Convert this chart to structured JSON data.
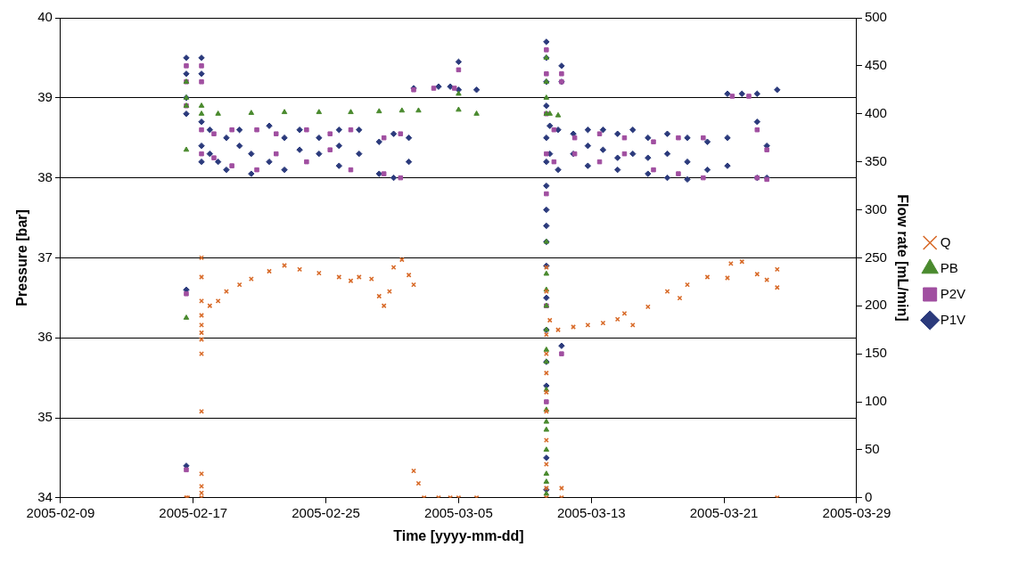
{
  "chart_data": {
    "type": "scatter",
    "xlabel": "Time [yyyy-mm-dd]",
    "ylabel": "Pressure [bar]",
    "y2label": "Flow rate [mL/min]",
    "xlim": [
      "2005-02-09",
      "2005-03-29"
    ],
    "xticks": [
      "2005-02-09",
      "2005-02-17",
      "2005-02-25",
      "2005-03-05",
      "2005-03-13",
      "2005-03-21",
      "2005-03-29"
    ],
    "ylim": [
      34,
      40
    ],
    "yticks": [
      34,
      35,
      36,
      37,
      38,
      39,
      40
    ],
    "y2lim": [
      0,
      500
    ],
    "y2ticks": [
      0,
      50,
      100,
      150,
      200,
      250,
      300,
      350,
      400,
      450,
      500
    ],
    "grid": "y",
    "legend": "right",
    "series": [
      {
        "name": "P1V",
        "color": "#2b3a7c",
        "marker": "diamond",
        "x": [
          "2005-02-16T14:00",
          "2005-02-16T14:00",
          "2005-02-16T14:00",
          "2005-02-16T14:00",
          "2005-02-16T14:00",
          "2005-02-16T14:00",
          "2005-02-17T12:00",
          "2005-02-17T12:00",
          "2005-02-17T12:00",
          "2005-02-17T12:00",
          "2005-02-17T12:00",
          "2005-02-18T00:00",
          "2005-02-18T00:00",
          "2005-02-18T12:00",
          "2005-02-19T00:00",
          "2005-02-19T00:00",
          "2005-02-19T19:00",
          "2005-02-19T19:00",
          "2005-02-20T12:00",
          "2005-02-20T12:00",
          "2005-02-21T14:00",
          "2005-02-21T14:00",
          "2005-02-22T12:00",
          "2005-02-22T12:00",
          "2005-02-23T10:00",
          "2005-02-23T10:00",
          "2005-02-24T14:00",
          "2005-02-24T14:00",
          "2005-02-25T19:00",
          "2005-02-25T19:00",
          "2005-02-25T19:00",
          "2005-02-27T00:00",
          "2005-02-27T00:00",
          "2005-02-28T05:00",
          "2005-02-28T05:00",
          "2005-03-01T02:00",
          "2005-03-01T02:00",
          "2005-03-02T00:00",
          "2005-03-02T00:00",
          "2005-03-02T07:00",
          "2005-03-03T19:00",
          "2005-03-04T12:00",
          "2005-03-05T00:00",
          "2005-03-05T00:00",
          "2005-03-06T02:00",
          "2005-03-10T07:00",
          "2005-03-10T07:00",
          "2005-03-10T07:00",
          "2005-03-10T07:00",
          "2005-03-10T07:00",
          "2005-03-10T07:00",
          "2005-03-10T07:00",
          "2005-03-10T07:00",
          "2005-03-10T07:00",
          "2005-03-10T07:00",
          "2005-03-10T07:00",
          "2005-03-10T07:00",
          "2005-03-10T07:00",
          "2005-03-10T07:00",
          "2005-03-10T07:00",
          "2005-03-10T07:00",
          "2005-03-10T07:00",
          "2005-03-11T05:00",
          "2005-03-11T05:00",
          "2005-03-11T05:00",
          "2005-03-10T12:00",
          "2005-03-10T12:00",
          "2005-03-11T00:00",
          "2005-03-11T00:00",
          "2005-03-11T22:00",
          "2005-03-11T22:00",
          "2005-03-12T19:00",
          "2005-03-12T19:00",
          "2005-03-12T19:00",
          "2005-03-13T17:00",
          "2005-03-13T17:00",
          "2005-03-14T14:00",
          "2005-03-14T14:00",
          "2005-03-14T14:00",
          "2005-03-15T12:00",
          "2005-03-15T12:00",
          "2005-03-16T10:00",
          "2005-03-16T10:00",
          "2005-03-16T10:00",
          "2005-03-17T14:00",
          "2005-03-17T14:00",
          "2005-03-17T14:00",
          "2005-03-18T19:00",
          "2005-03-18T19:00",
          "2005-03-18T19:00",
          "2005-03-20T00:00",
          "2005-03-20T00:00",
          "2005-03-21T05:00",
          "2005-03-21T05:00",
          "2005-03-21T05:00",
          "2005-03-22T02:00",
          "2005-03-23T00:00",
          "2005-03-23T00:00",
          "2005-03-23T00:00",
          "2005-03-23T14:00",
          "2005-03-23T14:00",
          "2005-03-24T05:00"
        ],
        "values": [
          39.5,
          39.3,
          39.0,
          38.8,
          36.6,
          34.4,
          39.5,
          39.3,
          38.7,
          38.4,
          38.2,
          38.6,
          38.3,
          38.2,
          38.5,
          38.1,
          38.6,
          38.4,
          38.3,
          38.05,
          38.65,
          38.2,
          38.5,
          38.1,
          38.6,
          38.35,
          38.5,
          38.3,
          38.6,
          38.4,
          38.15,
          38.6,
          38.3,
          38.45,
          38.05,
          38.55,
          38.0,
          38.5,
          38.2,
          39.12,
          39.14,
          39.14,
          39.45,
          39.1,
          39.1,
          39.7,
          39.5,
          39.2,
          38.9,
          38.5,
          38.2,
          37.9,
          37.6,
          37.4,
          37.2,
          36.9,
          36.5,
          36.1,
          35.7,
          35.4,
          34.5,
          34.1,
          39.4,
          39.2,
          35.9,
          38.65,
          38.3,
          38.6,
          38.1,
          38.55,
          38.3,
          38.6,
          38.4,
          38.15,
          38.6,
          38.35,
          38.55,
          38.25,
          38.1,
          38.6,
          38.3,
          38.5,
          38.25,
          38.05,
          38.55,
          38.3,
          38.0,
          38.5,
          38.2,
          37.98,
          38.45,
          38.1,
          39.05,
          38.5,
          38.15,
          39.05,
          39.05,
          38.7,
          38.0,
          38.4,
          38.0,
          39.1
        ]
      },
      {
        "name": "P2V",
        "color": "#a04fa0",
        "marker": "square",
        "x": [
          "2005-02-16T14:00",
          "2005-02-16T14:00",
          "2005-02-16T14:00",
          "2005-02-16T14:00",
          "2005-02-16T14:00",
          "2005-02-17T12:00",
          "2005-02-17T12:00",
          "2005-02-17T12:00",
          "2005-02-17T12:00",
          "2005-02-18T06:00",
          "2005-02-18T06:00",
          "2005-02-19T08:00",
          "2005-02-19T08:00",
          "2005-02-20T20:00",
          "2005-02-20T20:00",
          "2005-02-22T00:00",
          "2005-02-22T00:00",
          "2005-02-23T20:00",
          "2005-02-23T20:00",
          "2005-02-25T06:00",
          "2005-02-25T06:00",
          "2005-02-26T12:00",
          "2005-02-26T12:00",
          "2005-02-28T12:00",
          "2005-02-28T12:00",
          "2005-03-01T12:00",
          "2005-03-01T12:00",
          "2005-03-02T07:00",
          "2005-03-03T12:00",
          "2005-03-04T18:00",
          "2005-03-05T00:00",
          "2005-03-10T07:00",
          "2005-03-10T07:00",
          "2005-03-10T07:00",
          "2005-03-10T07:00",
          "2005-03-10T07:00",
          "2005-03-10T07:00",
          "2005-03-10T07:00",
          "2005-03-11T05:00",
          "2005-03-11T05:00",
          "2005-03-11T05:00",
          "2005-03-10T18:00",
          "2005-03-10T18:00",
          "2005-03-12T00:00",
          "2005-03-12T00:00",
          "2005-03-13T12:00",
          "2005-03-13T12:00",
          "2005-03-15T00:00",
          "2005-03-15T00:00",
          "2005-03-16T18:00",
          "2005-03-16T18:00",
          "2005-03-18T06:00",
          "2005-03-18T06:00",
          "2005-03-19T18:00",
          "2005-03-19T18:00",
          "2005-03-21T12:00",
          "2005-03-22T12:00",
          "2005-03-23T00:00",
          "2005-03-23T00:00",
          "2005-03-23T14:00",
          "2005-03-23T14:00"
        ],
        "values": [
          39.4,
          39.2,
          38.9,
          36.55,
          34.35,
          39.4,
          39.2,
          38.6,
          38.3,
          38.55,
          38.25,
          38.6,
          38.15,
          38.6,
          38.1,
          38.55,
          38.3,
          38.6,
          38.2,
          38.55,
          38.35,
          38.6,
          38.1,
          38.5,
          38.05,
          38.55,
          38.0,
          39.1,
          39.12,
          39.12,
          39.35,
          39.6,
          39.3,
          38.8,
          38.3,
          37.8,
          36.4,
          35.2,
          39.3,
          39.2,
          35.8,
          38.6,
          38.2,
          38.5,
          38.3,
          38.55,
          38.2,
          38.5,
          38.3,
          38.45,
          38.1,
          38.5,
          38.05,
          38.5,
          38.0,
          39.02,
          39.02,
          38.6,
          38.0,
          38.35,
          37.98
        ]
      },
      {
        "name": "PB",
        "color": "#4a8a2e",
        "marker": "triangle",
        "x": [
          "2005-02-16T14:00",
          "2005-02-16T14:00",
          "2005-02-16T14:00",
          "2005-02-16T14:00",
          "2005-02-16T14:00",
          "2005-02-17T12:00",
          "2005-02-17T12:00",
          "2005-02-18T12:00",
          "2005-02-20T12:00",
          "2005-02-22T12:00",
          "2005-02-24T14:00",
          "2005-02-26T12:00",
          "2005-02-28T05:00",
          "2005-03-01T14:00",
          "2005-03-02T14:00",
          "2005-03-05T00:00",
          "2005-03-05T00:00",
          "2005-03-06T02:00",
          "2005-03-10T07:00",
          "2005-03-10T07:00",
          "2005-03-10T07:00",
          "2005-03-10T07:00",
          "2005-03-10T07:00",
          "2005-03-10T07:00",
          "2005-03-10T07:00",
          "2005-03-10T07:00",
          "2005-03-10T07:00",
          "2005-03-10T07:00",
          "2005-03-10T07:00",
          "2005-03-10T07:00",
          "2005-03-10T07:00",
          "2005-03-10T07:00",
          "2005-03-10T07:00",
          "2005-03-10T07:00",
          "2005-03-10T07:00",
          "2005-03-10T07:00",
          "2005-03-10T07:00",
          "2005-03-10T12:00",
          "2005-03-11T00:00"
        ],
        "values": [
          39.2,
          39.0,
          38.9,
          38.35,
          36.25,
          38.9,
          38.8,
          38.8,
          38.81,
          38.82,
          38.82,
          38.82,
          38.83,
          38.84,
          38.84,
          39.05,
          38.85,
          38.8,
          39.5,
          39.2,
          39.0,
          38.8,
          37.2,
          36.8,
          36.6,
          36.4,
          36.1,
          35.85,
          35.7,
          35.35,
          35.1,
          34.95,
          34.85,
          34.6,
          34.3,
          34.2,
          34.05,
          38.8,
          38.78
        ]
      },
      {
        "name": "Q",
        "color": "#d86a28",
        "marker": "cross",
        "axis": "y2",
        "x": [
          "2005-02-16T14:00",
          "2005-02-16T16:00",
          "2005-02-17T12:00",
          "2005-02-17T12:00",
          "2005-02-17T12:00",
          "2005-02-17T12:00",
          "2005-02-17T12:00",
          "2005-02-17T12:00",
          "2005-02-17T12:00",
          "2005-02-17T12:00",
          "2005-02-17T12:00",
          "2005-02-17T12:00",
          "2005-02-17T12:00",
          "2005-02-17T12:00",
          "2005-02-17T12:00",
          "2005-02-18T00:00",
          "2005-02-18T12:00",
          "2005-02-19T00:00",
          "2005-02-19T19:00",
          "2005-02-20T12:00",
          "2005-02-21T14:00",
          "2005-02-22T12:00",
          "2005-02-23T10:00",
          "2005-02-24T14:00",
          "2005-02-25T19:00",
          "2005-02-26T12:00",
          "2005-02-27T00:00",
          "2005-02-27T18:00",
          "2005-02-28T05:00",
          "2005-02-28T12:00",
          "2005-02-28T20:00",
          "2005-03-01T02:00",
          "2005-03-01T14:00",
          "2005-03-02T00:00",
          "2005-03-02T07:00",
          "2005-03-02T07:00",
          "2005-03-02T14:00",
          "2005-03-02T22:00",
          "2005-03-03T19:00",
          "2005-03-04T12:00",
          "2005-03-05T00:00",
          "2005-03-06T02:00",
          "2005-03-10T07:00",
          "2005-03-10T07:00",
          "2005-03-10T07:00",
          "2005-03-10T07:00",
          "2005-03-10T07:00",
          "2005-03-10T07:00",
          "2005-03-10T07:00",
          "2005-03-10T07:00",
          "2005-03-10T07:00",
          "2005-03-10T07:00",
          "2005-03-10T07:00",
          "2005-03-10T12:00",
          "2005-03-11T00:00",
          "2005-03-11T05:00",
          "2005-03-11T05:00",
          "2005-03-11T22:00",
          "2005-03-12T19:00",
          "2005-03-13T17:00",
          "2005-03-14T14:00",
          "2005-03-15T00:00",
          "2005-03-15T12:00",
          "2005-03-16T10:00",
          "2005-03-17T14:00",
          "2005-03-18T08:00",
          "2005-03-18T19:00",
          "2005-03-20T00:00",
          "2005-03-21T05:00",
          "2005-03-21T10:00",
          "2005-03-22T02:00",
          "2005-03-23T00:00",
          "2005-03-23T14:00",
          "2005-03-24T05:00",
          "2005-03-24T05:00",
          "2005-03-24T05:00"
        ],
        "values": [
          0,
          0,
          0,
          5,
          12,
          25,
          90,
          150,
          165,
          172,
          180,
          190,
          205,
          230,
          250,
          200,
          205,
          215,
          222,
          228,
          236,
          242,
          238,
          234,
          230,
          226,
          230,
          228,
          210,
          200,
          215,
          240,
          248,
          232,
          222,
          28,
          15,
          0,
          0,
          0,
          0,
          0,
          0,
          10,
          35,
          60,
          90,
          110,
          130,
          150,
          170,
          215,
          240,
          185,
          175,
          10,
          0,
          178,
          180,
          182,
          186,
          192,
          180,
          199,
          215,
          208,
          222,
          230,
          229,
          244,
          246,
          233,
          227,
          238,
          219,
          0
        ]
      }
    ]
  }
}
